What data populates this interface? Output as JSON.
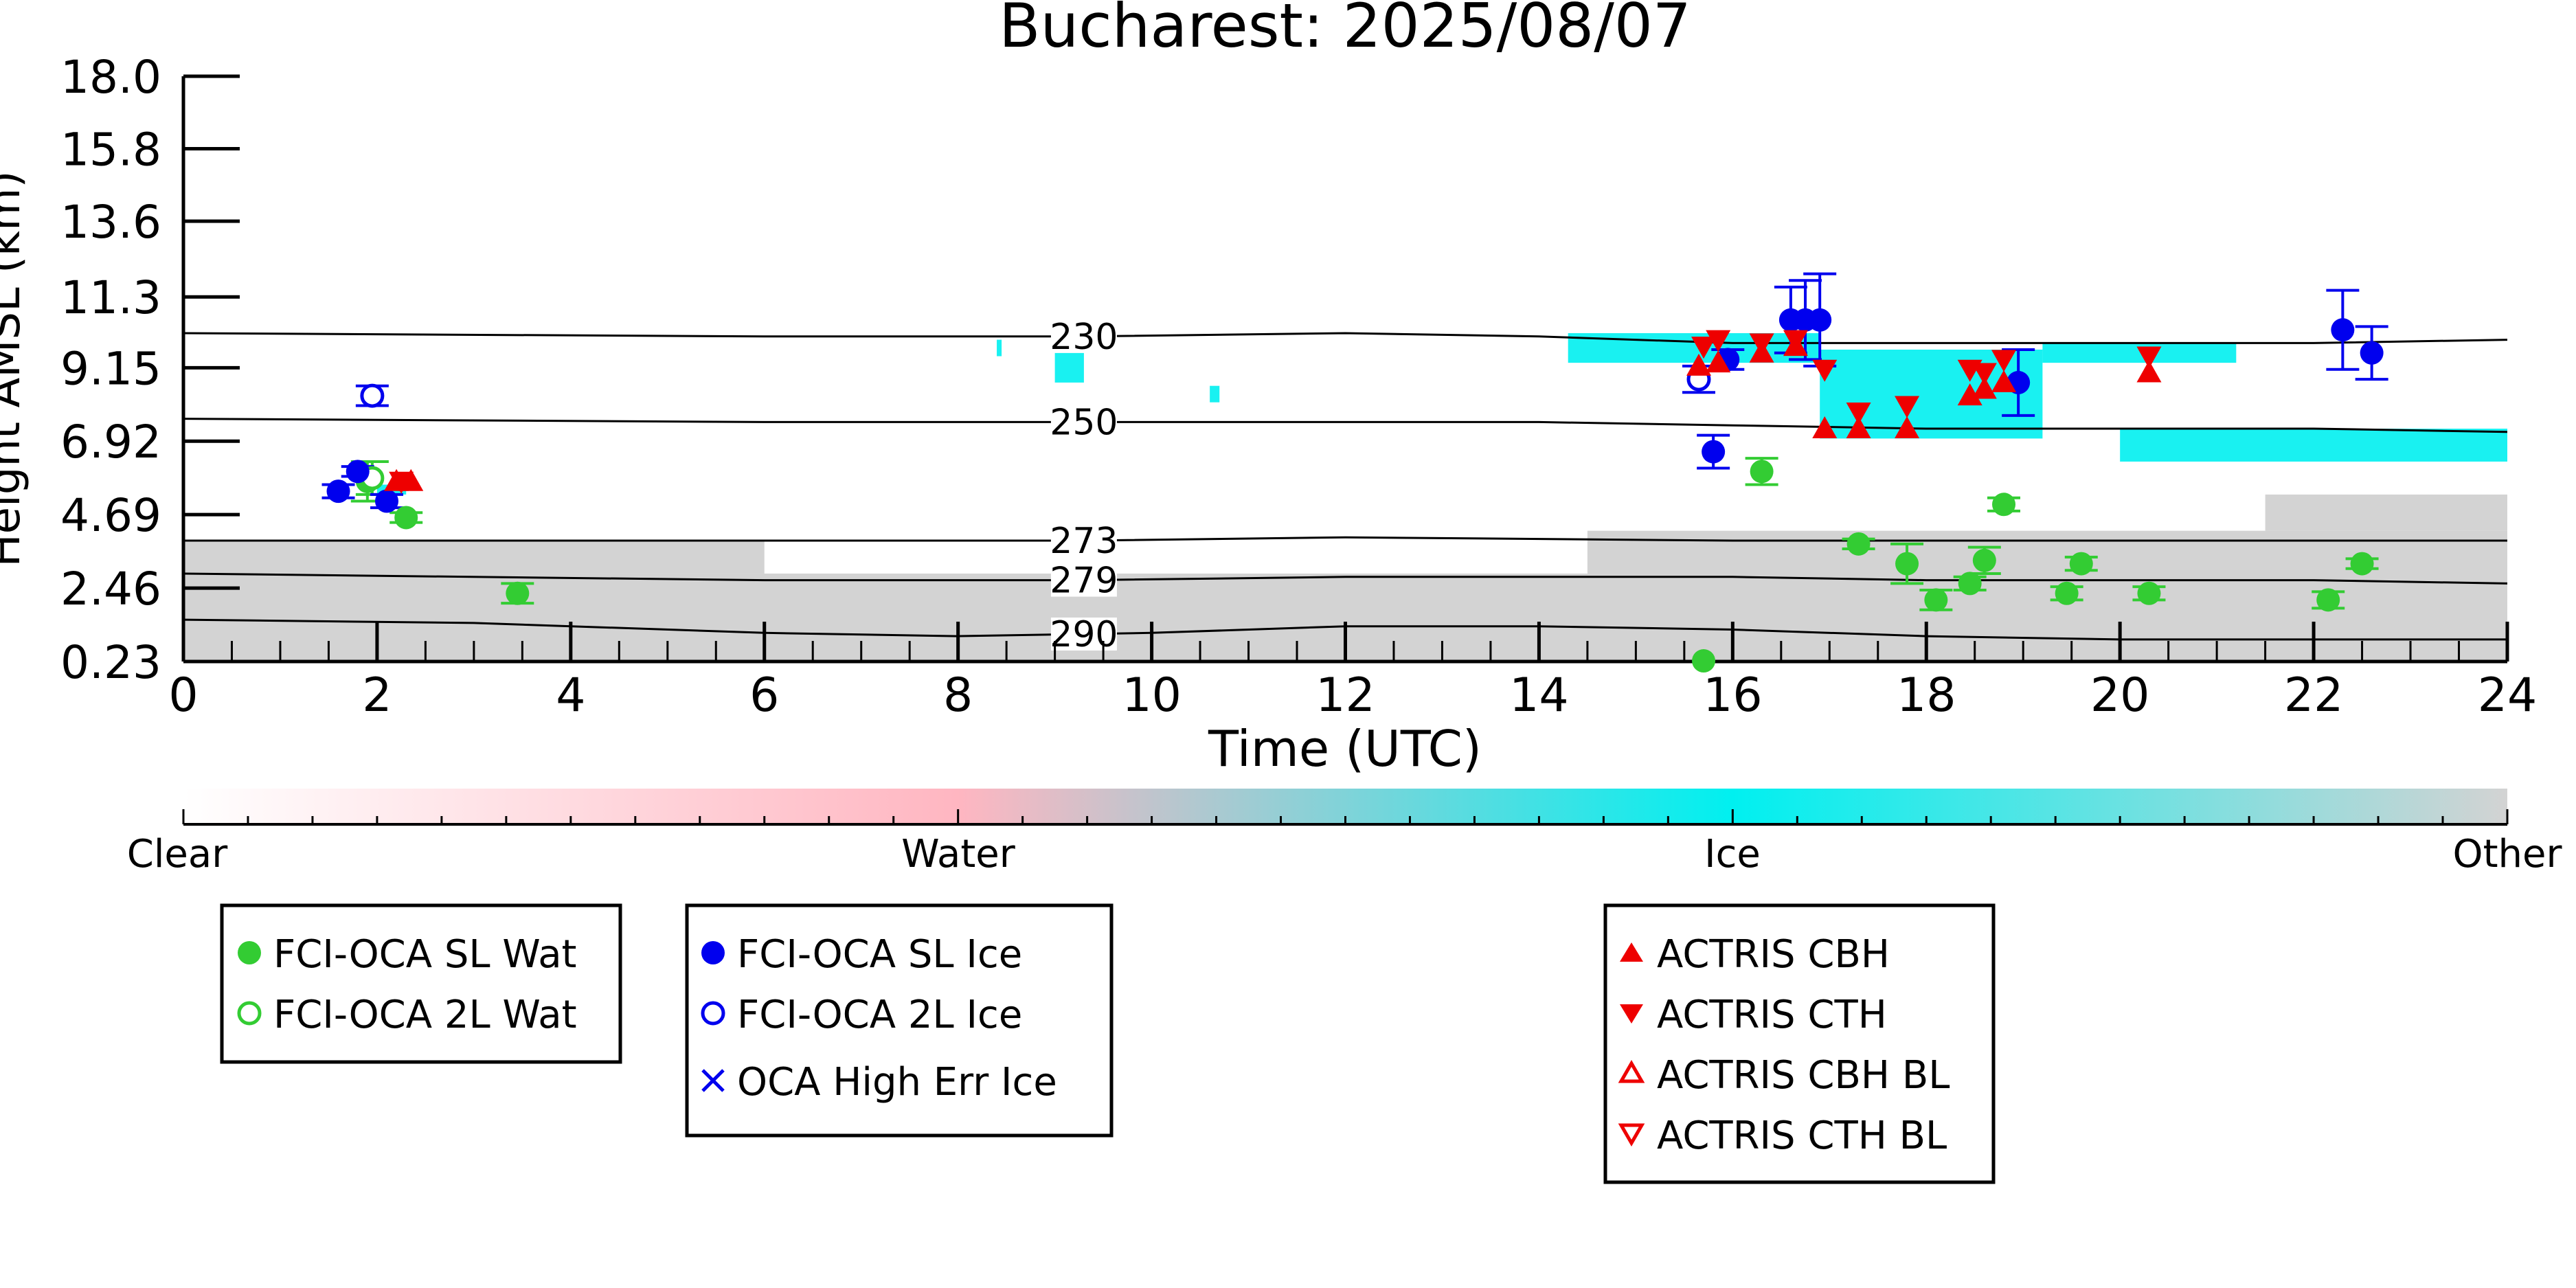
{
  "colors": {
    "water_green": "#33cc33",
    "ice_blue": "#0000ee",
    "actris_red": "#ee0000",
    "cyan_ice": "#00f0f0",
    "gray_other": "#d3d3d3",
    "pink_water": "#ffb6c1"
  },
  "chart_data": {
    "type": "scatter",
    "title": "Bucharest: 2025/08/07",
    "xlabel": "Time (UTC)",
    "ylabel": "Height AMSL (km)",
    "xlim": [
      0,
      24
    ],
    "ylim": [
      0.23,
      18.0
    ],
    "x_ticks": [
      0,
      2,
      4,
      6,
      8,
      10,
      12,
      14,
      16,
      18,
      20,
      22,
      24
    ],
    "x_tick_labels": [
      "0",
      "2",
      "4",
      "6",
      "8",
      "10",
      "12",
      "14",
      "16",
      "18",
      "20",
      "22",
      "24"
    ],
    "y_ticks": [
      0.23,
      2.46,
      4.69,
      6.92,
      9.15,
      11.3,
      13.6,
      15.8,
      18.0
    ],
    "y_tick_labels": [
      "0.23",
      "2.46",
      "4.69",
      "6.92",
      "9.15",
      "11.3",
      "13.6",
      "15.8",
      "18.0"
    ],
    "grid": false,
    "isotherms": [
      {
        "label": "230",
        "label_x": 9.3,
        "points": [
          [
            0,
            10.2
          ],
          [
            6,
            10.1
          ],
          [
            9.3,
            10.1
          ],
          [
            12,
            10.2
          ],
          [
            14,
            10.1
          ],
          [
            16,
            9.9
          ],
          [
            18,
            9.9
          ],
          [
            22,
            9.9
          ],
          [
            24,
            10.0
          ]
        ]
      },
      {
        "label": "250",
        "label_x": 9.3,
        "points": [
          [
            0,
            7.6
          ],
          [
            6,
            7.5
          ],
          [
            9.3,
            7.5
          ],
          [
            12,
            7.5
          ],
          [
            14,
            7.5
          ],
          [
            16,
            7.4
          ],
          [
            18,
            7.3
          ],
          [
            22,
            7.3
          ],
          [
            24,
            7.2
          ]
        ]
      },
      {
        "label": "273",
        "label_x": 9.3,
        "points": [
          [
            0,
            3.9
          ],
          [
            6,
            3.9
          ],
          [
            9.3,
            3.9
          ],
          [
            12,
            4.0
          ],
          [
            16,
            3.9
          ],
          [
            18,
            3.9
          ],
          [
            22,
            3.9
          ],
          [
            24,
            3.9
          ]
        ]
      },
      {
        "label": "279",
        "label_x": 9.3,
        "points": [
          [
            0,
            2.9
          ],
          [
            6,
            2.7
          ],
          [
            9.3,
            2.7
          ],
          [
            12,
            2.8
          ],
          [
            16,
            2.8
          ],
          [
            18,
            2.7
          ],
          [
            22,
            2.7
          ],
          [
            24,
            2.6
          ]
        ]
      },
      {
        "label": "290",
        "label_x": 9.3,
        "points": [
          [
            0,
            1.5
          ],
          [
            3,
            1.4
          ],
          [
            6,
            1.1
          ],
          [
            8,
            1.0
          ],
          [
            10,
            1.1
          ],
          [
            12,
            1.3
          ],
          [
            14,
            1.3
          ],
          [
            16,
            1.2
          ],
          [
            18,
            1.0
          ],
          [
            20,
            0.9
          ],
          [
            22,
            0.9
          ],
          [
            24,
            0.9
          ]
        ]
      }
    ],
    "cloud_mask": {
      "other_bands": [
        {
          "x_start": 0,
          "x_end": 24,
          "y_bottom": 0.23,
          "y_top": 2.9
        },
        {
          "x_start": 0,
          "x_end": 6,
          "y_bottom": 2.9,
          "y_top": 3.9
        },
        {
          "x_start": 14.5,
          "x_end": 24,
          "y_bottom": 2.7,
          "y_top": 4.2
        },
        {
          "x_start": 21.5,
          "x_end": 24,
          "y_bottom": 4.2,
          "y_top": 5.3
        }
      ],
      "ice_patches": [
        {
          "x_start": 14.3,
          "x_end": 16.9,
          "y_bottom": 9.3,
          "y_top": 10.2
        },
        {
          "x_start": 16.9,
          "x_end": 19.2,
          "y_bottom": 7.0,
          "y_top": 9.7
        },
        {
          "x_start": 19.2,
          "x_end": 21.2,
          "y_bottom": 9.3,
          "y_top": 9.9
        },
        {
          "x_start": 20.0,
          "x_end": 24,
          "y_bottom": 6.3,
          "y_top": 7.3
        },
        {
          "x_start": 9.0,
          "x_end": 9.3,
          "y_bottom": 8.7,
          "y_top": 9.6
        },
        {
          "x_start": 2.0,
          "x_end": 2.3,
          "y_bottom": 5.3,
          "y_top": 5.6
        },
        {
          "x_start": 10.6,
          "x_end": 10.7,
          "y_bottom": 8.1,
          "y_top": 8.6
        },
        {
          "x_start": 8.4,
          "x_end": 8.45,
          "y_bottom": 9.5,
          "y_top": 10.0
        }
      ]
    },
    "series": [
      {
        "name": "FCI-OCA SL Wat",
        "marker": "filled-circle",
        "color": "#33cc33",
        "points": [
          [
            1.9,
            5.7,
            0.6
          ],
          [
            2.3,
            4.6,
            0.15
          ],
          [
            3.45,
            2.3,
            0.3
          ],
          [
            16.3,
            6.0,
            0.4
          ],
          [
            17.3,
            3.8,
            0.15
          ],
          [
            17.8,
            3.2,
            0.6
          ],
          [
            18.1,
            2.1,
            0.3
          ],
          [
            18.45,
            2.6,
            0.2
          ],
          [
            18.6,
            3.3,
            0.4
          ],
          [
            18.8,
            5.0,
            0.2
          ],
          [
            19.45,
            2.3,
            0.2
          ],
          [
            19.6,
            3.2,
            0.2
          ],
          [
            20.3,
            2.3,
            0.2
          ],
          [
            22.15,
            2.1,
            0.25
          ],
          [
            22.5,
            3.2,
            0.15
          ],
          [
            15.7,
            0.25,
            0.0
          ]
        ]
      },
      {
        "name": "FCI-OCA 2L Wat",
        "marker": "open-circle",
        "color": "#33cc33",
        "points": [
          [
            1.95,
            5.8,
            0.5
          ]
        ]
      },
      {
        "name": "FCI-OCA SL Ice",
        "marker": "filled-circle",
        "color": "#0000ee",
        "points": [
          [
            1.6,
            5.4,
            0.2
          ],
          [
            1.8,
            6.0,
            0.15
          ],
          [
            2.1,
            5.1,
            0.2
          ],
          [
            15.8,
            6.6,
            0.5
          ],
          [
            15.95,
            9.4,
            0.3
          ],
          [
            16.6,
            10.6,
            1.0
          ],
          [
            16.75,
            10.6,
            1.2
          ],
          [
            16.9,
            10.6,
            1.4
          ],
          [
            18.95,
            8.7,
            1.0
          ],
          [
            22.3,
            10.3,
            1.2
          ],
          [
            22.6,
            9.6,
            0.8
          ]
        ]
      },
      {
        "name": "FCI-OCA 2L Ice",
        "marker": "open-circle",
        "color": "#0000ee",
        "points": [
          [
            1.95,
            8.3,
            0.3
          ],
          [
            15.65,
            8.8,
            0.4
          ]
        ]
      },
      {
        "name": "OCA High Err Ice",
        "marker": "x",
        "color": "#0000ee",
        "points": []
      },
      {
        "name": "ACTRIS CBH",
        "marker": "triangle-up",
        "color": "#ee0000",
        "points": [
          [
            2.2,
            5.7
          ],
          [
            2.35,
            5.7
          ],
          [
            15.65,
            9.2
          ],
          [
            15.85,
            9.3
          ],
          [
            16.3,
            9.6
          ],
          [
            16.65,
            9.8
          ],
          [
            16.95,
            7.3
          ],
          [
            17.3,
            7.3
          ],
          [
            17.8,
            7.3
          ],
          [
            18.45,
            8.3
          ],
          [
            18.6,
            8.5
          ],
          [
            18.8,
            8.7
          ],
          [
            20.3,
            9.0
          ]
        ]
      },
      {
        "name": "ACTRIS CTH",
        "marker": "triangle-down",
        "color": "#ee0000",
        "points": [
          [
            2.25,
            5.7
          ],
          [
            15.7,
            9.8
          ],
          [
            15.85,
            10.0
          ],
          [
            16.3,
            9.9
          ],
          [
            16.65,
            10.0
          ],
          [
            16.95,
            9.1
          ],
          [
            17.3,
            7.8
          ],
          [
            17.8,
            8.0
          ],
          [
            18.45,
            9.1
          ],
          [
            18.6,
            9.0
          ],
          [
            18.8,
            9.4
          ],
          [
            20.3,
            9.5
          ]
        ]
      },
      {
        "name": "ACTRIS CBH BL",
        "marker": "open-triangle-up",
        "color": "#ee0000",
        "points": []
      },
      {
        "name": "ACTRIS CTH BL",
        "marker": "open-triangle-down",
        "color": "#ee0000",
        "points": []
      }
    ],
    "colorbar": {
      "labels": [
        "Clear",
        "Water",
        "Ice",
        "Other"
      ],
      "stops": [
        "#ffffff",
        "#ffb6c1",
        "#00f0f0",
        "#d3d3d3"
      ]
    }
  },
  "legends": {
    "water": [
      "FCI-OCA SL Wat",
      "FCI-OCA 2L Wat"
    ],
    "ice": [
      "FCI-OCA SL Ice",
      "FCI-OCA 2L Ice",
      "OCA High Err Ice"
    ],
    "actris": [
      "ACTRIS CBH",
      "ACTRIS CTH",
      "ACTRIS CBH BL",
      "ACTRIS CTH BL"
    ]
  }
}
